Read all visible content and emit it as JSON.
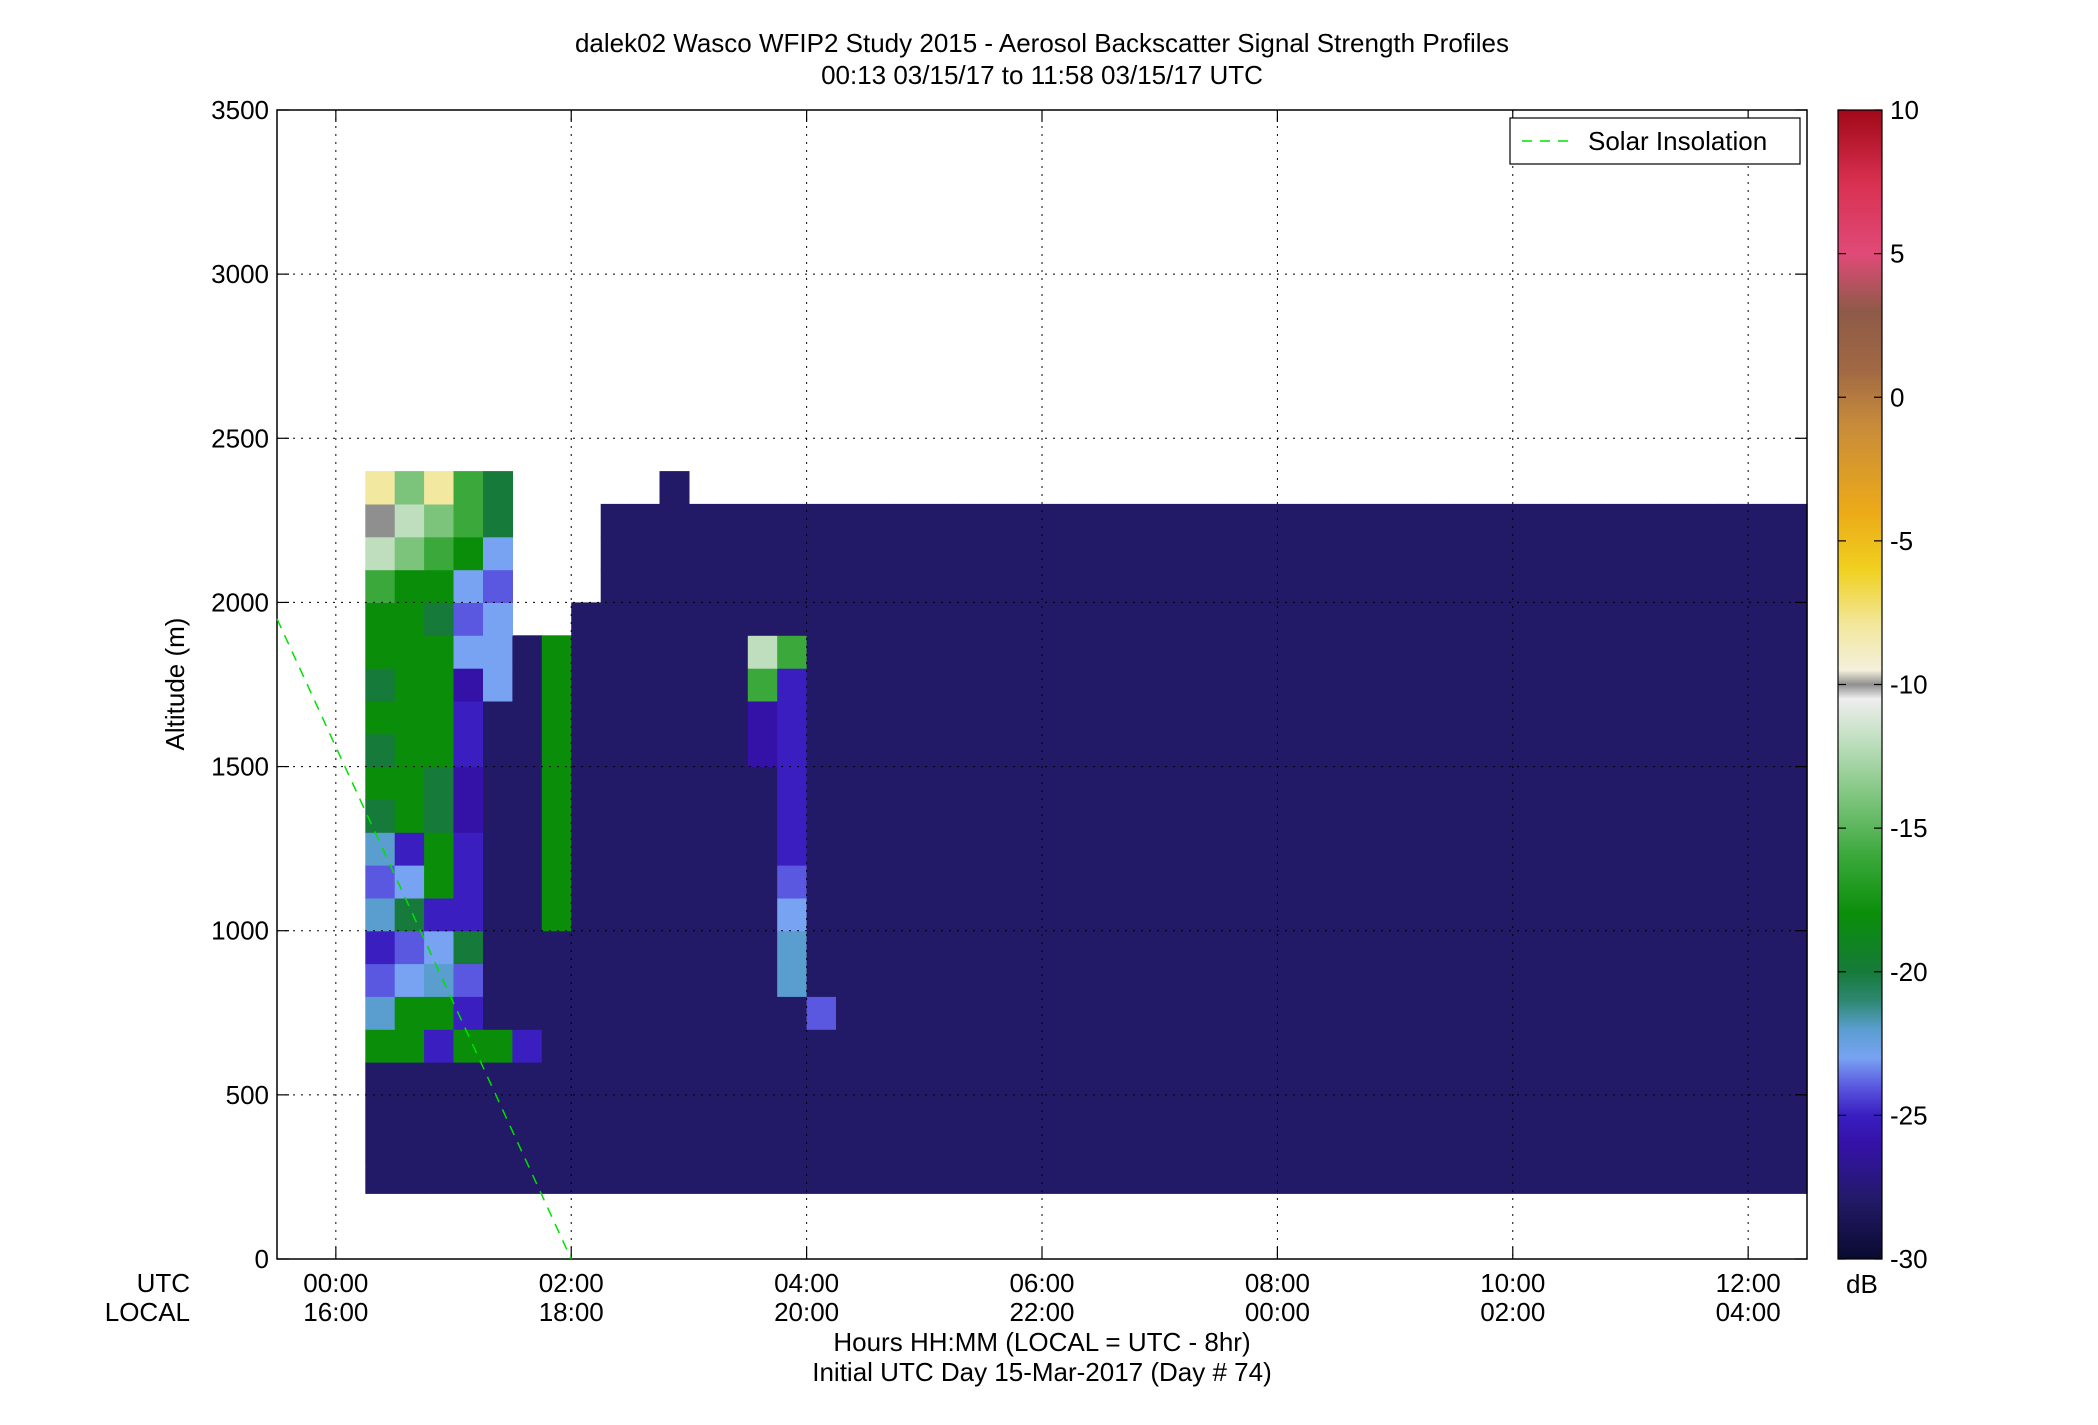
{
  "chart_data": {
    "type": "heatmap",
    "title": "dalek02 Wasco WFIP2 Study 2015 - Aerosol Backscatter Signal Strength Profiles",
    "subtitle": "00:13 03/15/17 to 11:58 03/15/17  UTC",
    "xlabel_line1": "Hours HH:MM  (LOCAL = UTC - 8hr)",
    "xlabel_line2": "Initial UTC Day 15-Mar-2017 (Day # 74)",
    "ylabel": "Altitude (m)",
    "xlim_hours": [
      -0.5,
      12.5
    ],
    "ylim": [
      0,
      3500
    ],
    "grid": true,
    "row_labels": {
      "utc": "UTC",
      "local": "LOCAL"
    },
    "x_ticks": [
      {
        "hour": 0,
        "utc": "00:00",
        "local": "16:00"
      },
      {
        "hour": 2,
        "utc": "02:00",
        "local": "18:00"
      },
      {
        "hour": 4,
        "utc": "04:00",
        "local": "20:00"
      },
      {
        "hour": 6,
        "utc": "06:00",
        "local": "22:00"
      },
      {
        "hour": 8,
        "utc": "08:00",
        "local": "00:00"
      },
      {
        "hour": 10,
        "utc": "10:00",
        "local": "02:00"
      },
      {
        "hour": 12,
        "utc": "12:00",
        "local": "04:00"
      }
    ],
    "y_ticks": [
      0,
      500,
      1000,
      1500,
      2000,
      2500,
      3000,
      3500
    ],
    "legend": {
      "entries": [
        "Solar Insolation"
      ],
      "placement": "top-right",
      "color": "#00e000"
    },
    "solar_insolation": [
      {
        "hour": -0.5,
        "alt": 1950
      },
      {
        "hour": 2.0,
        "alt": 0
      }
    ],
    "colorbar": {
      "label": "dB",
      "range": [
        -30,
        10
      ],
      "ticks": [
        10,
        5,
        0,
        -5,
        -10,
        -15,
        -20,
        -25,
        -30
      ],
      "stops": [
        {
          "v": -30,
          "c": "#0a0a30"
        },
        {
          "v": -28,
          "c": "#221a66"
        },
        {
          "v": -26,
          "c": "#3412a8"
        },
        {
          "v": -25,
          "c": "#3a1ec0"
        },
        {
          "v": -24,
          "c": "#5a58e0"
        },
        {
          "v": -23,
          "c": "#78a2f2"
        },
        {
          "v": -22,
          "c": "#5a9ed0"
        },
        {
          "v": -21,
          "c": "#2e8870"
        },
        {
          "v": -20,
          "c": "#167a3a"
        },
        {
          "v": -18,
          "c": "#0a8e0a"
        },
        {
          "v": -16,
          "c": "#3aa83a"
        },
        {
          "v": -14,
          "c": "#7cc47c"
        },
        {
          "v": -12,
          "c": "#bedebe"
        },
        {
          "v": -10.5,
          "c": "#eeeeee"
        },
        {
          "v": -10,
          "c": "#8f8f8f"
        },
        {
          "v": -9.5,
          "c": "#f4f0dc"
        },
        {
          "v": -8,
          "c": "#f2e8a0"
        },
        {
          "v": -6,
          "c": "#f0d020"
        },
        {
          "v": -4,
          "c": "#ecaa18"
        },
        {
          "v": -1,
          "c": "#c88c3a"
        },
        {
          "v": 1,
          "c": "#a06844"
        },
        {
          "v": 3,
          "c": "#8e5a48"
        },
        {
          "v": 5,
          "c": "#e04a78"
        },
        {
          "v": 7.5,
          "c": "#d83050"
        },
        {
          "v": 10,
          "c": "#a00818"
        }
      ]
    },
    "grid_spec": {
      "x0_hour": 0.25,
      "dx_hours": 0.25,
      "alt0": 200,
      "dalt": 100,
      "legend_code": "0=-28 dB, 1=-27, 2=-26, 3=-25, 4=-24, 5=-23, 6=-22, 7=-21, 8=-20, 9=-18, a=-16, b=-14, c=-12, d=-11, e=-10, f=-9, g=-8, h=-6, i=-4, j=-2, k=0, l=2, m=4, n=6, o=8, '.'=no data"
    },
    "values": [
      "0000000000000000000000000000000000000000000000000000000000000000000000000000000000000000000000000000000000000000000000000000",
      "0000000000000000000000000000000000000000000000000000000000000000000000000000000000000000000000000000000000000000000000000000",
      "0000000000000000000000000000000000000000000000000000000000000000000000000000000000000000000000000000000000000000000000000000",
      "0000000000000000000000000000000000000000000000000000000000000000000000000000000000000000000000000000000000000000000000000000",
      "9939930000000000000000000000000000000000000000000000000000000000000000000000000000000000000000000000000000000000000000000000",
      "69930000000000040000000000000000000000000000000000000000000000000000000000000000000000000000000000000000000000000000000000000",
      "4564000000000060000000000000000000000000000000000000000000000000000000000000000000000000000000000000000000000000000000000000",
      "3458000000000060000000000000000000000000000000000000000000000000000000000000000000000000000000000000000000000000000000000000",
      "6833009000000050000000000000000000000000000000000000000000000000000000000000000000000000000000000000000000000000000000000000",
      "4593009000000040000000000000000000000000000000000000000000000000000000000000000000000000000000000000000000000000000000000000",
      "6393009000000030000000000000000000000000000000000000000000000000000000000000000000000000000000000000000000000000000000000000",
      "8982009000000030000000000000000000000000000000000000000000000000000000000000000000000000000000000000000000000000000000000000",
      "9982009000000030000000000000000000000000000000000000000000000000000000000000000000000000000000000000000000000000000000000000",
      "8993009000000230000000000000000000000000000000000000000000000000000000000000000000000000000000000000000000000000000000000000",
      "9993009000000230000000000000000000000000000000000000000000000000000000000000000000000000000000000000000000000000000000000000",
      "8992509000000a30000000000000000000000000000000000000000000000000000000000000000000000000000000000000000000000000000000000000",
      "9995509000000ca0000000000000000000000000000000000000000000000000000000000000000000000000000000000000000000000000000000000000",
      "99845..00000000000000000000000000000000000000000000000000000000000000000000000000000000000000000000000000000000000000000000000",
      "a9954...000000000000000000000000000000000000000000000000000000000000000000000000000000000000000000000000000000000000000000000",
      "cba95...000000000000000000000000000000000000000000000000000000000000000000000000000000000000000000000000000000000000000000000",
      "ecba8...00000000000000000000000000000000000000000000000000000000000000000000000000000000000000000000000000000000000000000000",
      "gbga8.....0..................................................................................................................."
    ]
  }
}
